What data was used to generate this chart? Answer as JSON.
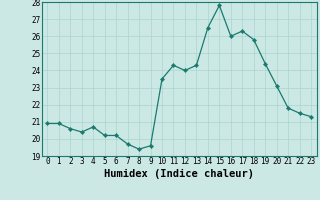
{
  "x": [
    0,
    1,
    2,
    3,
    4,
    5,
    6,
    7,
    8,
    9,
    10,
    11,
    12,
    13,
    14,
    15,
    16,
    17,
    18,
    19,
    20,
    21,
    22,
    23
  ],
  "y": [
    20.9,
    20.9,
    20.6,
    20.4,
    20.7,
    20.2,
    20.2,
    19.7,
    19.4,
    19.6,
    23.5,
    24.3,
    24.0,
    24.3,
    26.5,
    27.8,
    26.0,
    26.3,
    25.8,
    24.4,
    23.1,
    21.8,
    21.5,
    21.3
  ],
  "line_color": "#1a7a6e",
  "marker": "D",
  "marker_size": 2.2,
  "bg_color": "#cce8e5",
  "grid_color": "#aad4d0",
  "xlabel": "Humidex (Indice chaleur)",
  "ylim": [
    19,
    28
  ],
  "xlim": [
    -0.5,
    23.5
  ],
  "yticks": [
    19,
    20,
    21,
    22,
    23,
    24,
    25,
    26,
    27,
    28
  ],
  "xticks": [
    0,
    1,
    2,
    3,
    4,
    5,
    6,
    7,
    8,
    9,
    10,
    11,
    12,
    13,
    14,
    15,
    16,
    17,
    18,
    19,
    20,
    21,
    22,
    23
  ],
  "tick_fontsize": 5.5,
  "xlabel_fontsize": 7.5,
  "linewidth": 0.9
}
